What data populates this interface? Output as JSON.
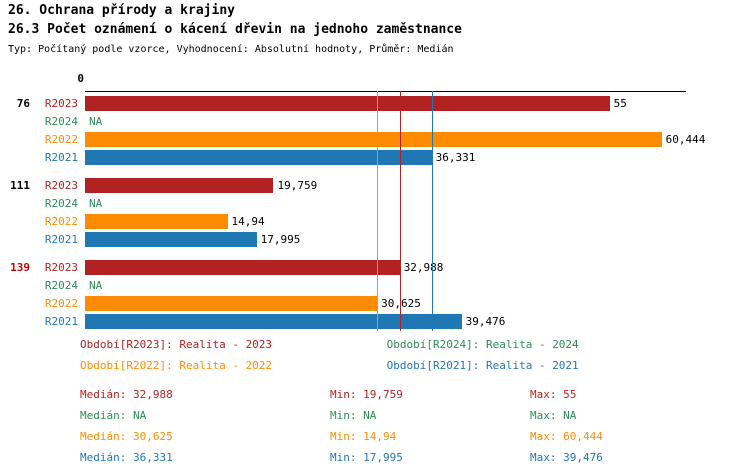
{
  "header": {
    "title": "26. Ochrana přírody a krajiny",
    "subtitle": "26.3 Počet oznámení o kácení dřevin na jednoho zaměstnance",
    "meta": "Typ: Počítaný podle vzorce, Vyhodnocení: Absolutní hodnoty, Průměr: Medián"
  },
  "chart_data": {
    "type": "bar",
    "orientation": "horizontal",
    "title": "26.3 Počet oznámení o kácení dřevin na jednoho zaměstnance",
    "x_axis": {
      "zero_label": "0",
      "range_estimate": [
        0,
        63
      ],
      "grid": false
    },
    "series_order": [
      "R2023",
      "R2024",
      "R2022",
      "R2021"
    ],
    "groups": [
      {
        "id": "76",
        "id_color": "#000000",
        "bars": [
          {
            "series": "R2023",
            "value": 55,
            "label": "55",
            "color": "#B22222"
          },
          {
            "series": "R2024",
            "value": null,
            "label": "NA",
            "color": "#2E8B57"
          },
          {
            "series": "R2022",
            "value": 60.444,
            "label": "60,444",
            "color": "#FF8C00"
          },
          {
            "series": "R2021",
            "value": 36.331,
            "label": "36,331",
            "color": "#1F77B4"
          }
        ]
      },
      {
        "id": "111",
        "id_color": "#000000",
        "bars": [
          {
            "series": "R2023",
            "value": 19.759,
            "label": "19,759",
            "color": "#B22222"
          },
          {
            "series": "R2024",
            "value": null,
            "label": "NA",
            "color": "#2E8B57"
          },
          {
            "series": "R2022",
            "value": 14.94,
            "label": "14,94",
            "color": "#FF8C00"
          },
          {
            "series": "R2021",
            "value": 17.995,
            "label": "17,995",
            "color": "#1F77B4"
          }
        ]
      },
      {
        "id": "139",
        "id_color": "#CC0000",
        "bars": [
          {
            "series": "R2023",
            "value": 32.988,
            "label": "32,988",
            "color": "#B22222"
          },
          {
            "series": "R2024",
            "value": null,
            "label": "NA",
            "color": "#2E8B57"
          },
          {
            "series": "R2022",
            "value": 30.625,
            "label": "30,625",
            "color": "#FF8C00"
          },
          {
            "series": "R2021",
            "value": 39.476,
            "label": "39,476",
            "color": "#1F77B4"
          }
        ]
      }
    ],
    "reference_lines": [
      {
        "name": "median-R2022",
        "value": 30.625,
        "color": "#FF8C00"
      },
      {
        "name": "median-R2023",
        "value": 32.988,
        "color": "#B22222"
      },
      {
        "name": "median-R2021",
        "value": 36.331,
        "color": "#1F77B4"
      }
    ]
  },
  "legend": [
    {
      "label": "Období[R2023]: Realita - 2023",
      "color": "#B22222"
    },
    {
      "label": "Období[R2024]: Realita - 2024",
      "color": "#2E8B57"
    },
    {
      "label": "Období[R2022]: Realita - 2022",
      "color": "#FF8C00"
    },
    {
      "label": "Období[R2021]: Realita - 2021",
      "color": "#1F77B4"
    }
  ],
  "stats": [
    {
      "median": "Medián: 32,988",
      "min": "Min: 19,759",
      "max": "Max: 55",
      "color": "#B22222"
    },
    {
      "median": "Medián: NA",
      "min": "Min: NA",
      "max": "Max: NA",
      "color": "#2E8B57"
    },
    {
      "median": "Medián: 30,625",
      "min": "Min: 14,94",
      "max": "Max: 60,444",
      "color": "#FF8C00"
    },
    {
      "median": "Medián: 36,331",
      "min": "Min: 17,995",
      "max": "Max: 39,476",
      "color": "#1F77B4"
    }
  ]
}
